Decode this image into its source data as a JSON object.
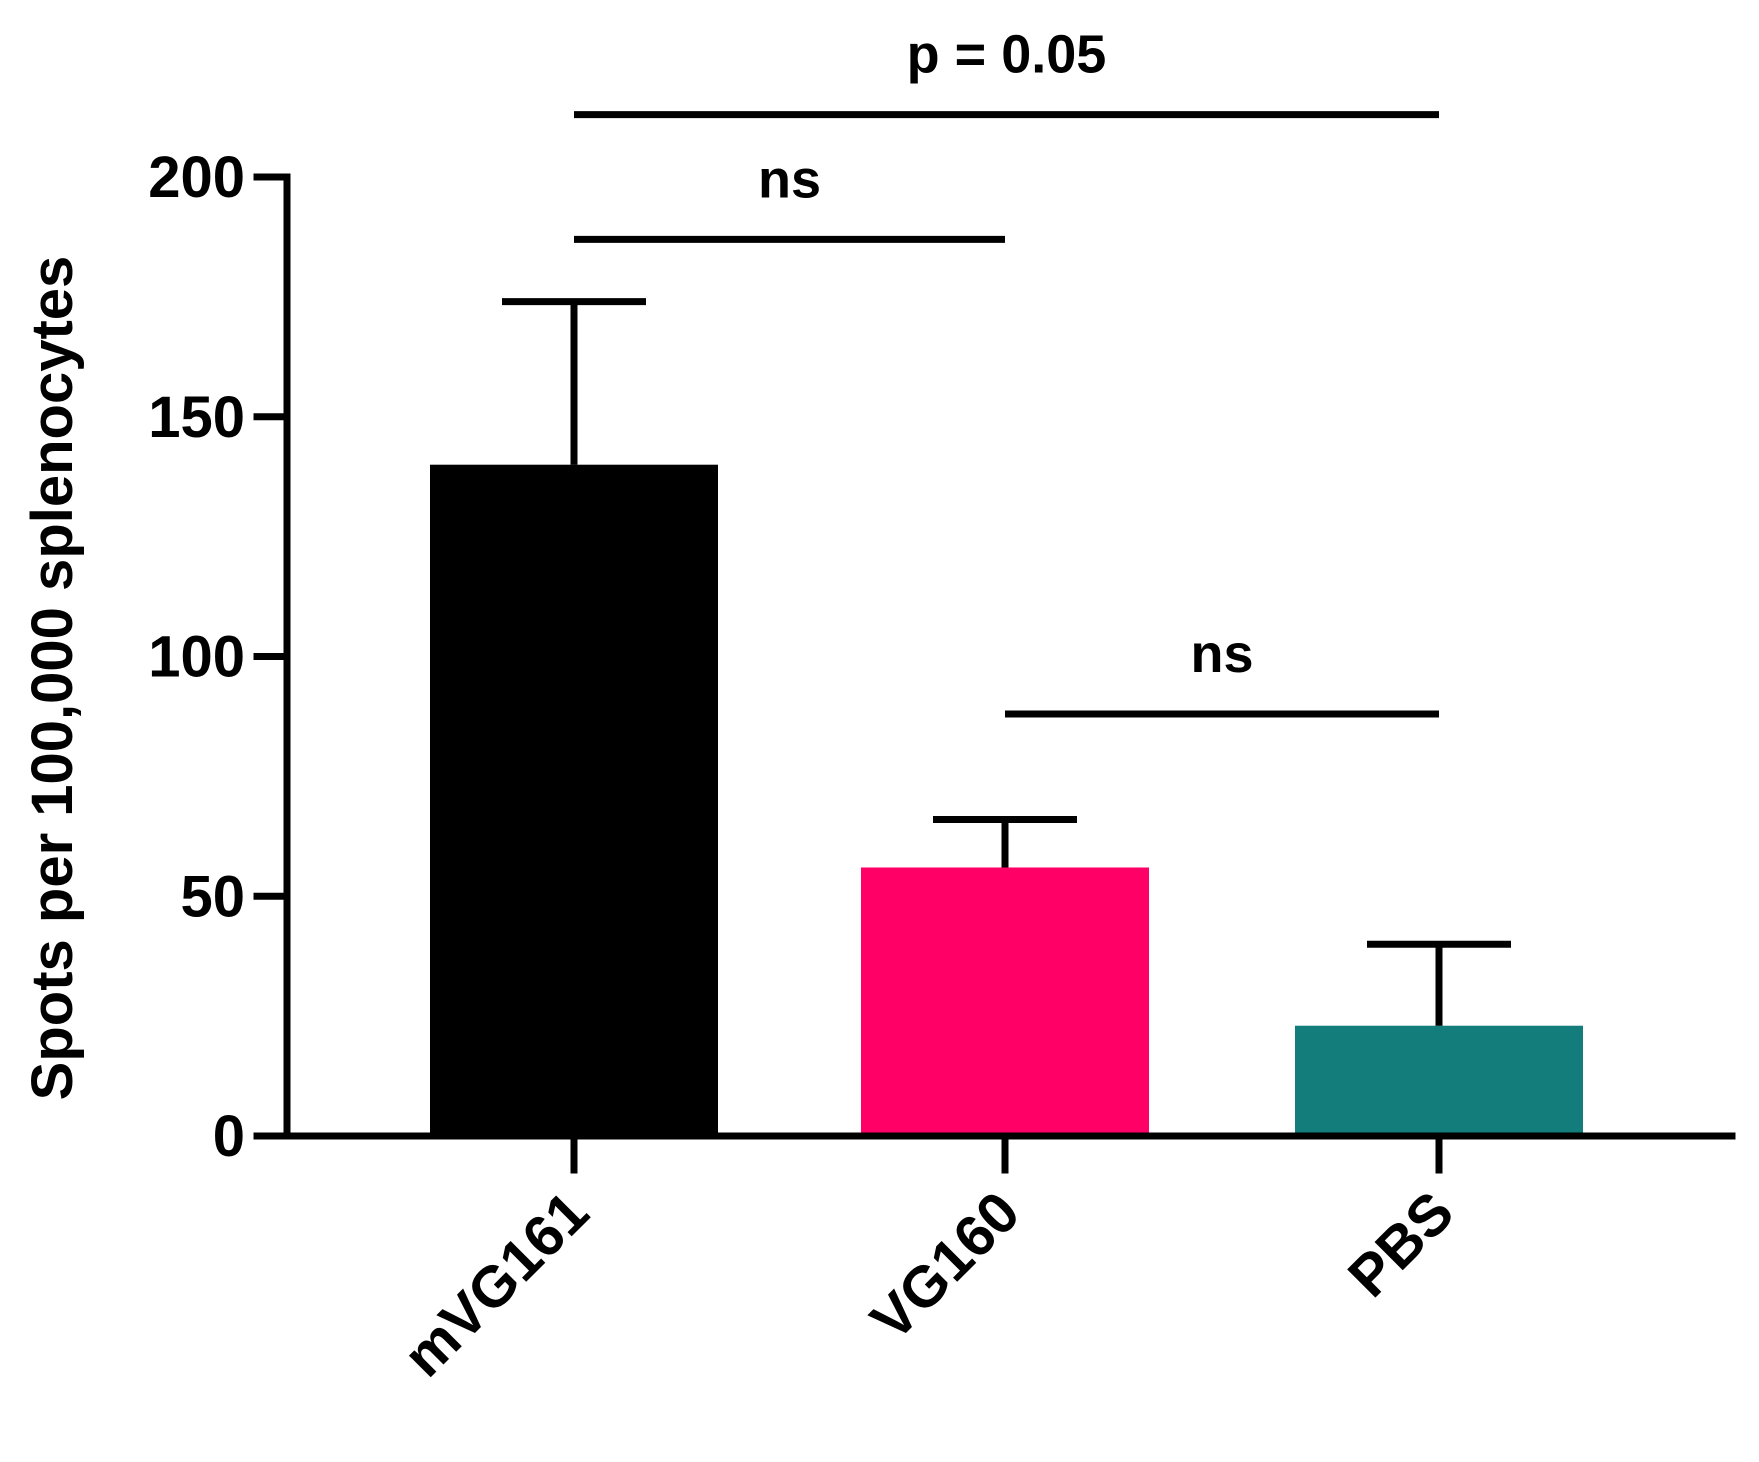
{
  "chart_data": {
    "type": "bar",
    "title": "",
    "xlabel": "",
    "ylabel": "Spots per 100,000 splenocytes",
    "ylim": [
      0,
      200
    ],
    "yticks": [
      0,
      50,
      100,
      150,
      200
    ],
    "grid": false,
    "categories": [
      "mVG161",
      "VG160",
      "PBS"
    ],
    "values": [
      140,
      56,
      23
    ],
    "error_upper": [
      174,
      66,
      40
    ],
    "colors": [
      "#000000",
      "#FF0066",
      "#127D7A"
    ],
    "significance": [
      {
        "from": 0,
        "to": 1,
        "label": "ns",
        "y": 187
      },
      {
        "from": 1,
        "to": 2,
        "label": "ns",
        "y": 88
      },
      {
        "from": 0,
        "to": 2,
        "label": "p = 0.05",
        "y": 213
      }
    ]
  }
}
